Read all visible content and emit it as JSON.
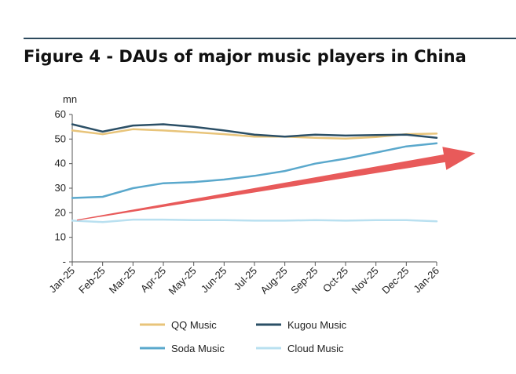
{
  "title": "Figure 4 - DAUs of major music players in China",
  "chart_data": {
    "type": "line",
    "title": "Figure 4 - DAUs of major music players in China",
    "ylabel": "mn",
    "xlabel": "",
    "ylim": [
      0,
      60
    ],
    "yticks": [
      {
        "value": 60,
        "label": "60"
      },
      {
        "value": 50,
        "label": "50"
      },
      {
        "value": 40,
        "label": "40"
      },
      {
        "value": 30,
        "label": "30"
      },
      {
        "value": 20,
        "label": "20"
      },
      {
        "value": 10,
        "label": "10"
      },
      {
        "value": 0,
        "label": "-"
      }
    ],
    "categories": [
      "Jan-25",
      "Feb-25",
      "Mar-25",
      "Apr-25",
      "May-25",
      "Jun-25",
      "Jul-25",
      "Aug-25",
      "Sep-25",
      "Oct-25",
      "Nov-25",
      "Dec-25",
      "Jan-26"
    ],
    "grid": false,
    "legend_position": "bottom",
    "series": [
      {
        "name": "QQ Music",
        "color": "#e8c47a",
        "values": [
          53.5,
          52.0,
          54.0,
          53.5,
          52.8,
          52.0,
          51.0,
          51.0,
          50.5,
          50.2,
          50.8,
          52.0,
          52.2
        ]
      },
      {
        "name": "Kugou Music",
        "color": "#2b4f66",
        "values": [
          56.0,
          53.0,
          55.5,
          56.0,
          55.0,
          53.5,
          51.8,
          51.0,
          51.8,
          51.4,
          51.6,
          51.8,
          50.5
        ]
      },
      {
        "name": "Soda Music",
        "color": "#5aa8cc",
        "values": [
          26.0,
          26.5,
          30.0,
          32.0,
          32.5,
          33.5,
          35.0,
          37.0,
          40.0,
          42.0,
          44.5,
          47.0,
          48.3
        ]
      },
      {
        "name": "Cloud Music",
        "color": "#b9e0f0",
        "values": [
          16.8,
          16.2,
          17.2,
          17.2,
          17.0,
          17.0,
          16.8,
          16.8,
          17.0,
          16.8,
          17.0,
          17.0,
          16.5
        ]
      }
    ],
    "annotation": {
      "type": "arrow",
      "color": "#e85a5a",
      "from": {
        "x": "Jan-25",
        "y": 17
      },
      "to": {
        "x": "Jan-26",
        "y": 41.5
      }
    }
  }
}
